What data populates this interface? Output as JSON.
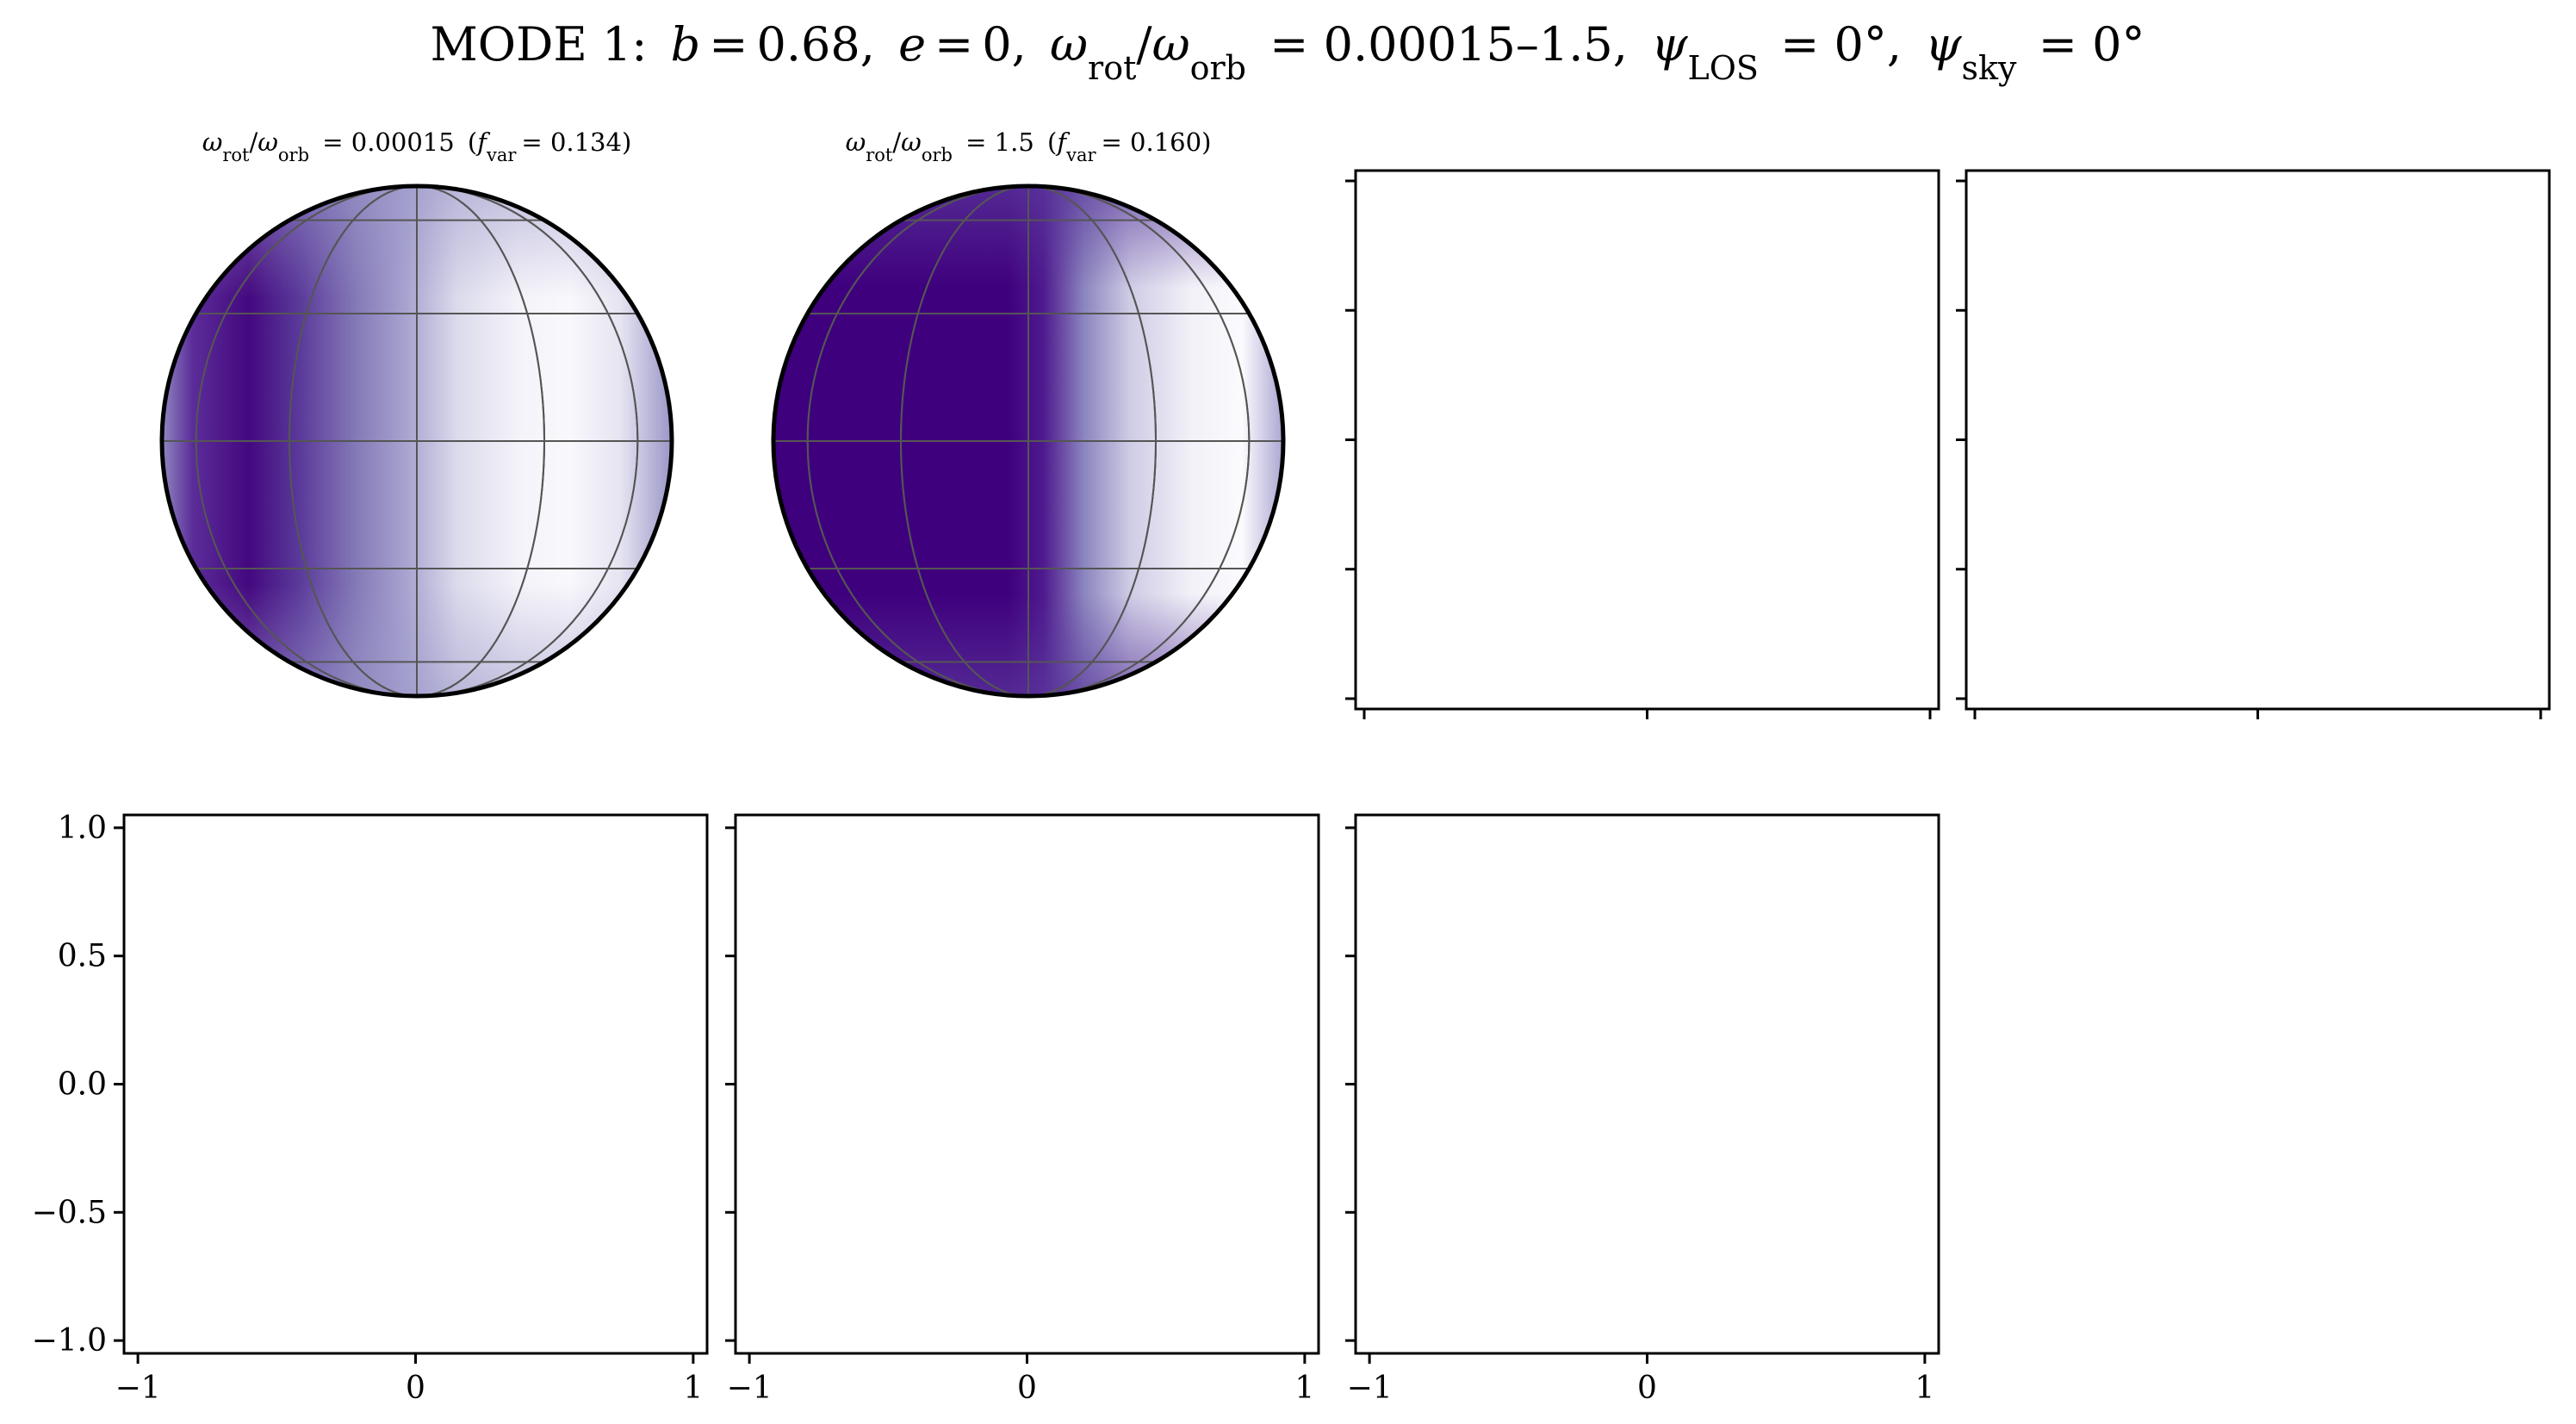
{
  "figure": {
    "title": "MODE 1: b = 0.68, e = 0, ω_rot/ω_orb = 0.00015–1.5, ψ_LOS = 0°, ψ_sky = 0°",
    "title_parts": {
      "mode": "MODE 1:",
      "b": "b = 0.68,",
      "e": "e = 0,",
      "omega": "ω",
      "omega_rot_sub": "rot",
      "omega_orb_sub": "orb",
      "omega_range": "= 0.00015–1.5,",
      "psi": "ψ",
      "psi_los_sub": "LOS",
      "psi_los_val": "= 0°,",
      "psi_sky_sub": "sky",
      "psi_sky_val": "= 0°"
    }
  },
  "colors": {
    "colormap": "Purples",
    "dark": "#3f007d",
    "light": "#fcfbfd",
    "outline": "#000000",
    "grid": "#555555"
  },
  "chart_data": [
    {
      "type": "map",
      "panel": "top-1",
      "title": "ω_rot/ω_orb = 0.00015 (f_var = 0.134)",
      "title_parts": {
        "ratio": "= 0.00015",
        "fvar": "= 0.134"
      },
      "omega_ratio": 0.00015,
      "f_var": 0.134,
      "projection": "orthographic globe with latitude/longitude graticule",
      "dark_region": "left (western) limb",
      "bright_region": "right of centre"
    },
    {
      "type": "map",
      "panel": "top-2",
      "title": "ω_rot/ω_orb = 1.5 (f_var = 0.160)",
      "title_parts": {
        "ratio": "= 1.5",
        "fvar": "= 0.160"
      },
      "omega_ratio": 1.5,
      "f_var": 0.16,
      "projection": "orthographic globe with latitude/longitude graticule",
      "dark_region": "left hemisphere",
      "bright_region": "right limb"
    },
    {
      "type": "empty",
      "panel": "top-3",
      "tick_labels_shown": false
    },
    {
      "type": "empty",
      "panel": "top-4",
      "tick_labels_shown": false
    },
    {
      "type": "empty",
      "panel": "bottom-1",
      "xlim": [
        -1.05,
        1.05
      ],
      "ylim": [
        -1.05,
        1.05
      ],
      "xticks": [
        -1,
        0,
        1
      ],
      "yticks": [
        1.0,
        0.5,
        0.0,
        -0.5,
        -1.0
      ],
      "xtick_labels": [
        "−1",
        "0",
        "1"
      ],
      "ytick_labels": [
        "1.0",
        "0.5",
        "0.0",
        "−0.5",
        "−1.0"
      ]
    },
    {
      "type": "empty",
      "panel": "bottom-2",
      "xlim": [
        -1.05,
        1.05
      ],
      "ylim": [
        -1.05,
        1.05
      ],
      "xticks": [
        -1,
        0,
        1
      ],
      "xtick_labels": [
        "−1",
        "0",
        "1"
      ]
    },
    {
      "type": "empty",
      "panel": "bottom-3",
      "xlim": [
        -1.05,
        1.05
      ],
      "ylim": [
        -1.05,
        1.05
      ],
      "xticks": [
        -1,
        0,
        1
      ],
      "xtick_labels": [
        "−1",
        "0",
        "1"
      ]
    }
  ]
}
